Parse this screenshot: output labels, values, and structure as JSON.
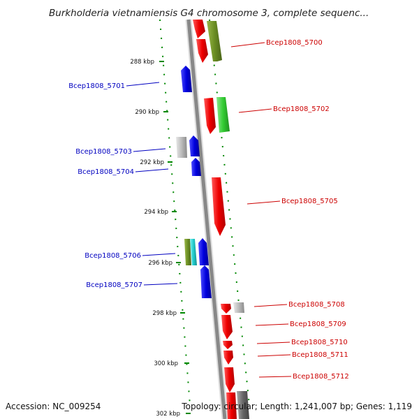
{
  "title": "Burkholderia vietnamiensis G4 chromosome 3, complete sequenc...",
  "footer": {
    "accession": "Accession: NC_009254",
    "topology": "Topology: circular; Length: 1,241,007 bp; Genes: 1,119"
  },
  "ticks": [
    "288 kbp",
    "290 kbp",
    "292 kbp",
    "294 kbp",
    "296 kbp",
    "298 kbp",
    "300 kbp",
    "302 kbp"
  ],
  "genes_left": [
    "Bcep1808_5701",
    "Bcep1808_5703",
    "Bcep1808_5704",
    "Bcep1808_5706",
    "Bcep1808_5707"
  ],
  "genes_right": [
    "Bcep1808_5700",
    "Bcep1808_5702",
    "Bcep1808_5705",
    "Bcep1808_5708",
    "Bcep1808_5709",
    "Bcep1808_5710",
    "Bcep1808_5711",
    "Bcep1808_5712"
  ],
  "colors": {
    "reverse_strand_label": "#0000c0",
    "forward_strand_label": "#cc0000",
    "gene_red": "#ee0000",
    "gene_blue": "#0000dd",
    "gene_green": "#33cc33",
    "gene_olive": "#6b8e23",
    "gene_grey": "#bbbbbb",
    "backbone": "#888888",
    "dots": "#008800"
  }
}
